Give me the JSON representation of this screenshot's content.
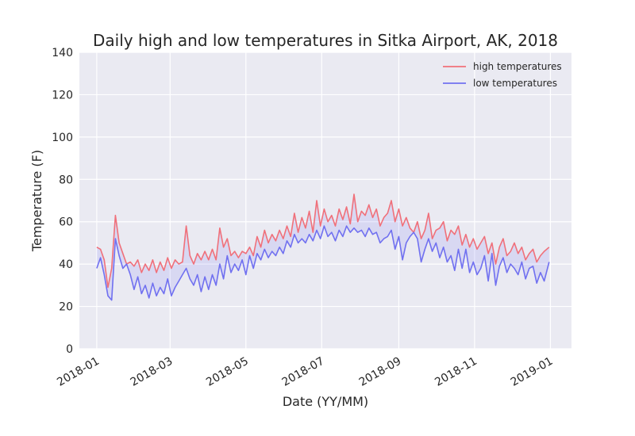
{
  "chart_data": {
    "type": "line",
    "title": "Daily high and low temperatures in Sitka Airport, AK, 2018",
    "xlabel": "Date (YY/MM)",
    "ylabel": "Temperature (F)",
    "ylim": [
      0,
      140
    ],
    "yticks": [
      0,
      20,
      40,
      60,
      80,
      100,
      120,
      140
    ],
    "xlim": [
      "2017-12-18",
      "2019-01-18"
    ],
    "xticks": [
      "2018-01",
      "2018-03",
      "2018-05",
      "2018-07",
      "2018-09",
      "2018-11",
      "2019-01"
    ],
    "grid": true,
    "legend_position": "top-right",
    "fill_between": true,
    "background": "#EAEAF2",
    "series": [
      {
        "name": "high temperatures",
        "color": "#F0707A",
        "x": [
          "2018-01-01",
          "2018-01-04",
          "2018-01-07",
          "2018-01-10",
          "2018-01-13",
          "2018-01-16",
          "2018-01-19",
          "2018-01-22",
          "2018-01-25",
          "2018-01-28",
          "2018-01-31",
          "2018-02-03",
          "2018-02-06",
          "2018-02-09",
          "2018-02-12",
          "2018-02-15",
          "2018-02-18",
          "2018-02-21",
          "2018-02-24",
          "2018-02-27",
          "2018-03-02",
          "2018-03-05",
          "2018-03-08",
          "2018-03-11",
          "2018-03-14",
          "2018-03-17",
          "2018-03-20",
          "2018-03-23",
          "2018-03-26",
          "2018-03-29",
          "2018-04-01",
          "2018-04-04",
          "2018-04-07",
          "2018-04-10",
          "2018-04-13",
          "2018-04-16",
          "2018-04-19",
          "2018-04-22",
          "2018-04-25",
          "2018-04-28",
          "2018-05-01",
          "2018-05-04",
          "2018-05-07",
          "2018-05-10",
          "2018-05-13",
          "2018-05-16",
          "2018-05-19",
          "2018-05-22",
          "2018-05-25",
          "2018-05-28",
          "2018-05-31",
          "2018-06-03",
          "2018-06-06",
          "2018-06-09",
          "2018-06-12",
          "2018-06-15",
          "2018-06-18",
          "2018-06-21",
          "2018-06-24",
          "2018-06-27",
          "2018-06-30",
          "2018-07-03",
          "2018-07-06",
          "2018-07-09",
          "2018-07-12",
          "2018-07-15",
          "2018-07-18",
          "2018-07-21",
          "2018-07-24",
          "2018-07-27",
          "2018-07-30",
          "2018-08-02",
          "2018-08-05",
          "2018-08-08",
          "2018-08-11",
          "2018-08-14",
          "2018-08-17",
          "2018-08-20",
          "2018-08-23",
          "2018-08-26",
          "2018-08-29",
          "2018-09-01",
          "2018-09-04",
          "2018-09-07",
          "2018-09-10",
          "2018-09-13",
          "2018-09-16",
          "2018-09-19",
          "2018-09-22",
          "2018-09-25",
          "2018-09-28",
          "2018-10-01",
          "2018-10-04",
          "2018-10-07",
          "2018-10-10",
          "2018-10-13",
          "2018-10-16",
          "2018-10-19",
          "2018-10-22",
          "2018-10-25",
          "2018-10-28",
          "2018-10-31",
          "2018-11-03",
          "2018-11-06",
          "2018-11-09",
          "2018-11-12",
          "2018-11-15",
          "2018-11-18",
          "2018-11-21",
          "2018-11-24",
          "2018-11-27",
          "2018-11-30",
          "2018-12-03",
          "2018-12-06",
          "2018-12-09",
          "2018-12-12",
          "2018-12-15",
          "2018-12-18",
          "2018-12-21",
          "2018-12-24",
          "2018-12-27",
          "2018-12-31"
        ],
        "values": [
          48,
          47,
          42,
          29,
          38,
          63,
          50,
          45,
          40,
          41,
          39,
          42,
          36,
          40,
          37,
          42,
          36,
          41,
          37,
          43,
          38,
          42,
          40,
          41,
          58,
          44,
          40,
          45,
          42,
          46,
          42,
          47,
          42,
          57,
          48,
          52,
          44,
          46,
          43,
          46,
          45,
          48,
          44,
          53,
          48,
          56,
          50,
          54,
          51,
          56,
          52,
          58,
          53,
          64,
          55,
          62,
          57,
          65,
          55,
          70,
          58,
          66,
          60,
          63,
          58,
          66,
          61,
          67,
          59,
          73,
          60,
          65,
          63,
          68,
          62,
          66,
          58,
          62,
          64,
          70,
          60,
          66,
          58,
          62,
          57,
          55,
          60,
          52,
          56,
          64,
          52,
          56,
          57,
          60,
          51,
          56,
          54,
          58,
          49,
          54,
          48,
          52,
          47,
          50,
          53,
          45,
          50,
          40,
          48,
          52,
          44,
          46,
          50,
          45,
          48,
          42,
          45,
          47,
          41,
          44,
          46,
          48
        ]
      },
      {
        "name": "low temperatures",
        "color": "#7070F0",
        "x": [
          "2018-01-01",
          "2018-01-04",
          "2018-01-07",
          "2018-01-10",
          "2018-01-13",
          "2018-01-16",
          "2018-01-19",
          "2018-01-22",
          "2018-01-25",
          "2018-01-28",
          "2018-01-31",
          "2018-02-03",
          "2018-02-06",
          "2018-02-09",
          "2018-02-12",
          "2018-02-15",
          "2018-02-18",
          "2018-02-21",
          "2018-02-24",
          "2018-02-27",
          "2018-03-02",
          "2018-03-05",
          "2018-03-08",
          "2018-03-11",
          "2018-03-14",
          "2018-03-17",
          "2018-03-20",
          "2018-03-23",
          "2018-03-26",
          "2018-03-29",
          "2018-04-01",
          "2018-04-04",
          "2018-04-07",
          "2018-04-10",
          "2018-04-13",
          "2018-04-16",
          "2018-04-19",
          "2018-04-22",
          "2018-04-25",
          "2018-04-28",
          "2018-05-01",
          "2018-05-04",
          "2018-05-07",
          "2018-05-10",
          "2018-05-13",
          "2018-05-16",
          "2018-05-19",
          "2018-05-22",
          "2018-05-25",
          "2018-05-28",
          "2018-05-31",
          "2018-06-03",
          "2018-06-06",
          "2018-06-09",
          "2018-06-12",
          "2018-06-15",
          "2018-06-18",
          "2018-06-21",
          "2018-06-24",
          "2018-06-27",
          "2018-06-30",
          "2018-07-03",
          "2018-07-06",
          "2018-07-09",
          "2018-07-12",
          "2018-07-15",
          "2018-07-18",
          "2018-07-21",
          "2018-07-24",
          "2018-07-27",
          "2018-07-30",
          "2018-08-02",
          "2018-08-05",
          "2018-08-08",
          "2018-08-11",
          "2018-08-14",
          "2018-08-17",
          "2018-08-20",
          "2018-08-23",
          "2018-08-26",
          "2018-08-29",
          "2018-09-01",
          "2018-09-04",
          "2018-09-07",
          "2018-09-10",
          "2018-09-13",
          "2018-09-16",
          "2018-09-19",
          "2018-09-22",
          "2018-09-25",
          "2018-09-28",
          "2018-10-01",
          "2018-10-04",
          "2018-10-07",
          "2018-10-10",
          "2018-10-13",
          "2018-10-16",
          "2018-10-19",
          "2018-10-22",
          "2018-10-25",
          "2018-10-28",
          "2018-10-31",
          "2018-11-03",
          "2018-11-06",
          "2018-11-09",
          "2018-11-12",
          "2018-11-15",
          "2018-11-18",
          "2018-11-21",
          "2018-11-24",
          "2018-11-27",
          "2018-11-30",
          "2018-12-03",
          "2018-12-06",
          "2018-12-09",
          "2018-12-12",
          "2018-12-15",
          "2018-12-18",
          "2018-12-21",
          "2018-12-24",
          "2018-12-27",
          "2018-12-31"
        ],
        "values": [
          38,
          43,
          35,
          25,
          23,
          52,
          44,
          38,
          40,
          35,
          28,
          34,
          26,
          30,
          24,
          31,
          25,
          29,
          26,
          33,
          25,
          29,
          32,
          35,
          38,
          33,
          30,
          35,
          27,
          34,
          28,
          35,
          30,
          40,
          33,
          44,
          36,
          40,
          37,
          42,
          35,
          44,
          38,
          45,
          42,
          47,
          43,
          46,
          44,
          48,
          45,
          51,
          48,
          54,
          50,
          52,
          50,
          54,
          51,
          56,
          52,
          58,
          53,
          55,
          51,
          56,
          53,
          58,
          55,
          57,
          55,
          56,
          53,
          57,
          54,
          55,
          50,
          52,
          53,
          56,
          47,
          53,
          42,
          50,
          53,
          55,
          52,
          41,
          47,
          52,
          46,
          50,
          43,
          48,
          41,
          44,
          37,
          47,
          38,
          47,
          36,
          41,
          35,
          38,
          44,
          32,
          45,
          30,
          39,
          43,
          36,
          40,
          38,
          35,
          41,
          33,
          38,
          39,
          31,
          36,
          32,
          41
        ]
      }
    ]
  }
}
